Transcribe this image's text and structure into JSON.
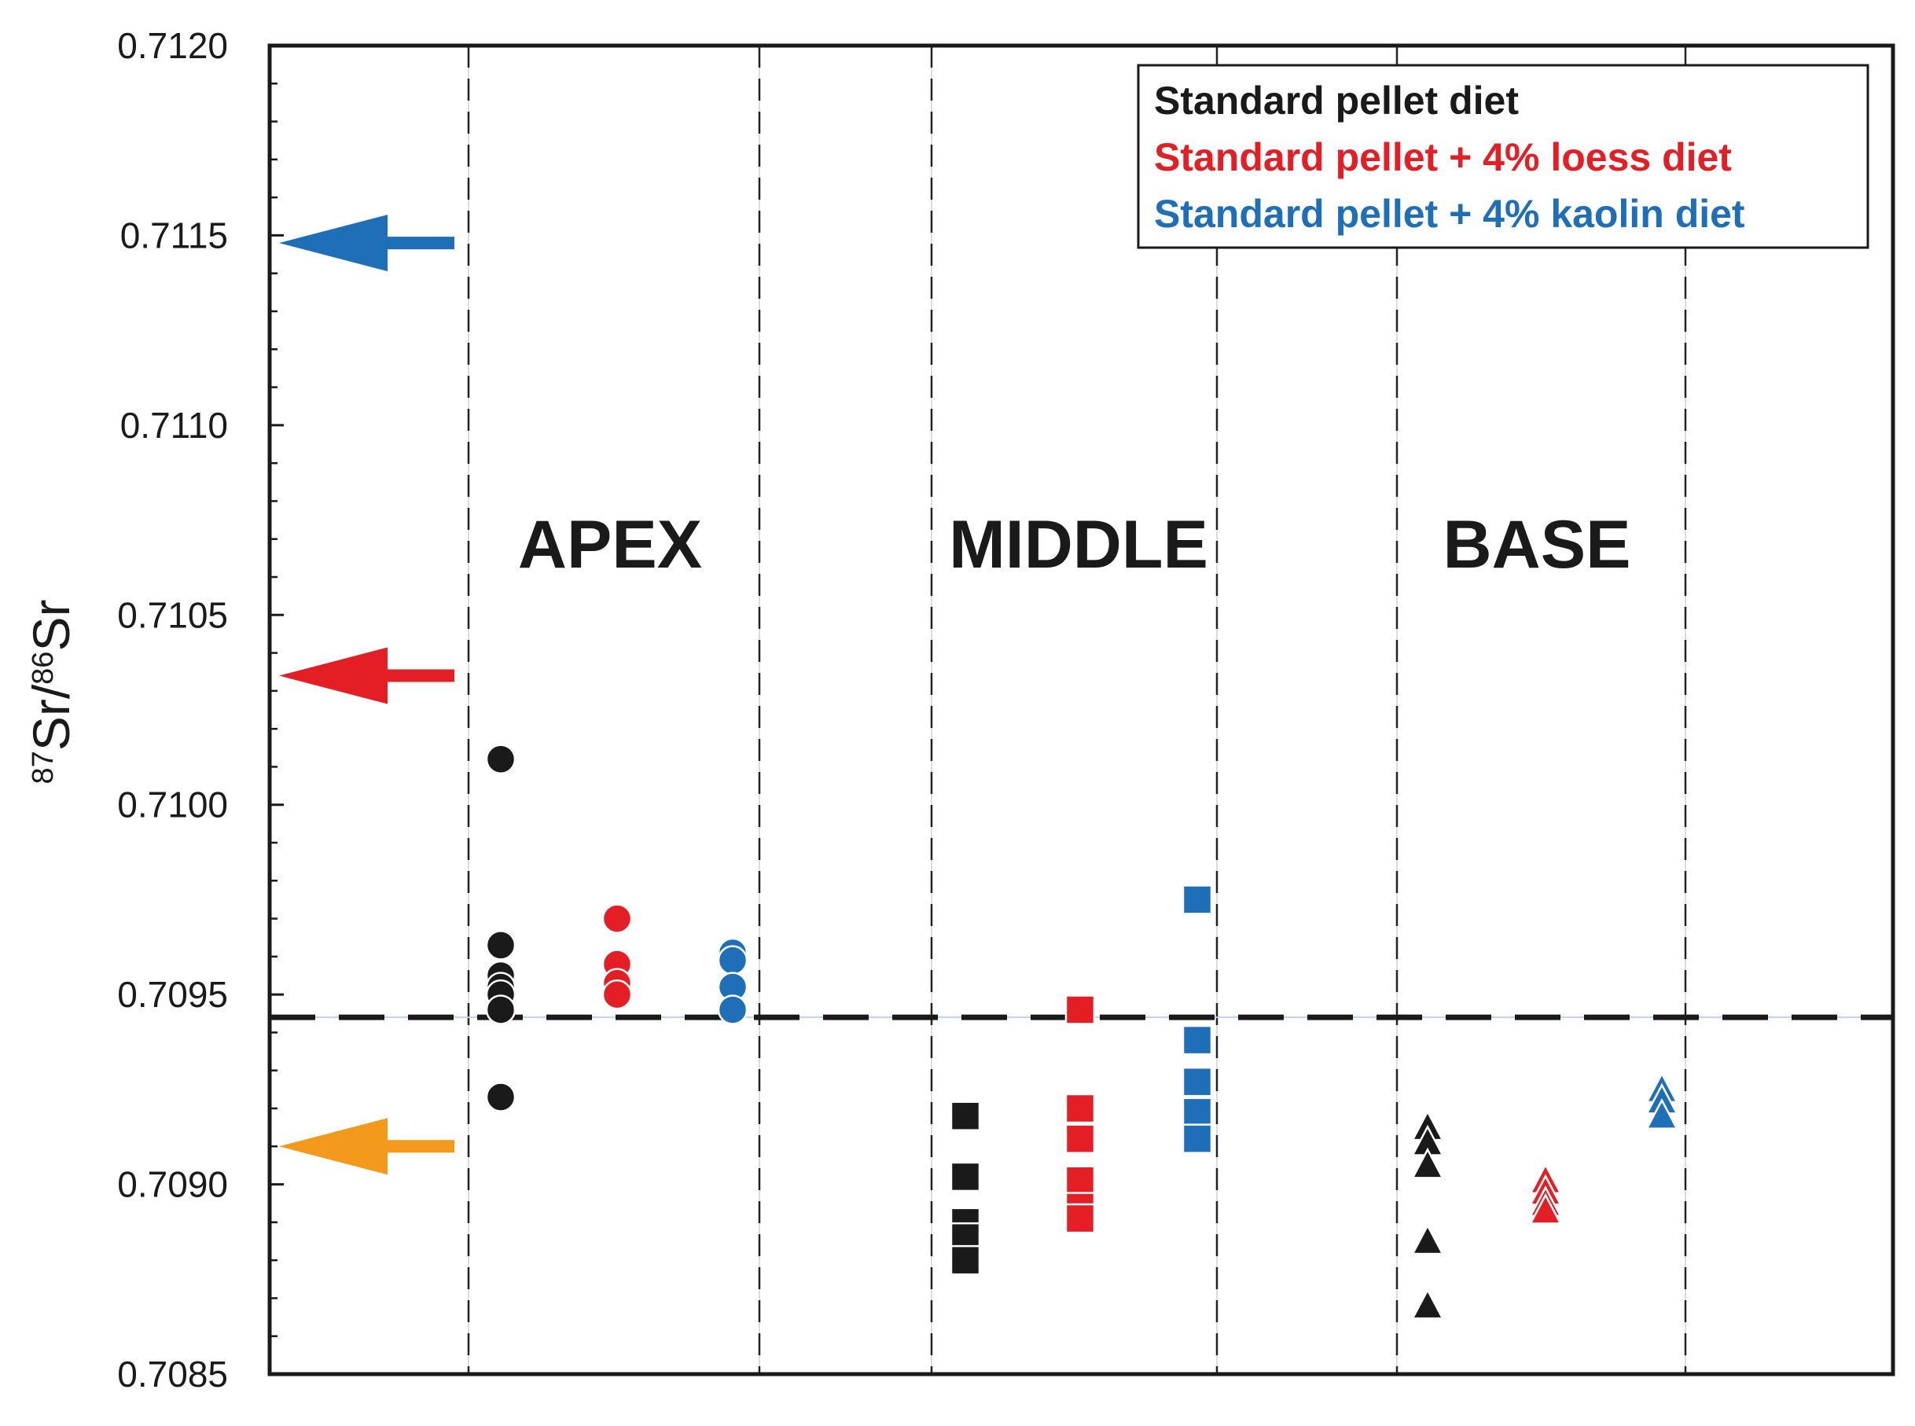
{
  "chart_data": {
    "type": "scatter",
    "ylabel": {
      "sup1": "87",
      "main1": "Sr/",
      "sup2": "86",
      "main2": "Sr"
    },
    "ylim": [
      0.7085,
      0.712
    ],
    "yticks": [
      "0.7120",
      "0.7115",
      "0.7110",
      "0.7105",
      "0.7100",
      "0.7095",
      "0.7090",
      "0.7085"
    ],
    "ytick_values": [
      0.712,
      0.7115,
      0.711,
      0.7105,
      0.71,
      0.7095,
      0.709,
      0.7085
    ],
    "sections": [
      "APEX",
      "MIDDLE",
      "BASE"
    ],
    "reference_line": 0.70944,
    "grid": false,
    "legend_position": "top-right",
    "legend": [
      {
        "label": "Standard pellet diet",
        "color": "#1a1a1a"
      },
      {
        "label": "Standard pellet + 4% loess diet",
        "color": "#e31e24"
      },
      {
        "label": "Standard pellet + 4% kaolin diet",
        "color": "#1f6fb8"
      }
    ],
    "arrows": [
      {
        "name": "blue",
        "y": 0.71148,
        "color": "#1f6fb8"
      },
      {
        "name": "red",
        "y": 0.71034,
        "color": "#e31e24"
      },
      {
        "name": "orange",
        "y": 0.7091,
        "color": "#f39a1d"
      }
    ],
    "series": [
      {
        "section": "APEX",
        "diet": 0,
        "marker": "circle",
        "values": [
          0.71012,
          0.70963,
          0.70955,
          0.70952,
          0.7095,
          0.70946,
          0.70923
        ]
      },
      {
        "section": "APEX",
        "diet": 1,
        "marker": "circle",
        "values": [
          0.7097,
          0.70958,
          0.70953,
          0.7095
        ]
      },
      {
        "section": "APEX",
        "diet": 2,
        "marker": "circle",
        "values": [
          0.70961,
          0.70959,
          0.70952,
          0.70946
        ]
      },
      {
        "section": "MIDDLE",
        "diet": 0,
        "marker": "square",
        "values": [
          0.70918,
          0.70902,
          0.7089,
          0.70886,
          0.7088
        ]
      },
      {
        "section": "MIDDLE",
        "diet": 1,
        "marker": "square",
        "values": [
          0.70946,
          0.7092,
          0.70912,
          0.70901,
          0.70894,
          0.70891
        ]
      },
      {
        "section": "MIDDLE",
        "diet": 2,
        "marker": "square",
        "values": [
          0.70975,
          0.70938,
          0.70927,
          0.70919,
          0.70912
        ]
      },
      {
        "section": "BASE",
        "diet": 0,
        "marker": "triangle",
        "values": [
          0.70915,
          0.70911,
          0.70905,
          0.70885,
          0.70868
        ]
      },
      {
        "section": "BASE",
        "diet": 1,
        "marker": "triangle",
        "values": [
          0.70901,
          0.70898,
          0.70895,
          0.70893
        ]
      },
      {
        "section": "BASE",
        "diet": 2,
        "marker": "triangle",
        "values": [
          0.70925,
          0.70922,
          0.70918
        ]
      }
    ]
  }
}
